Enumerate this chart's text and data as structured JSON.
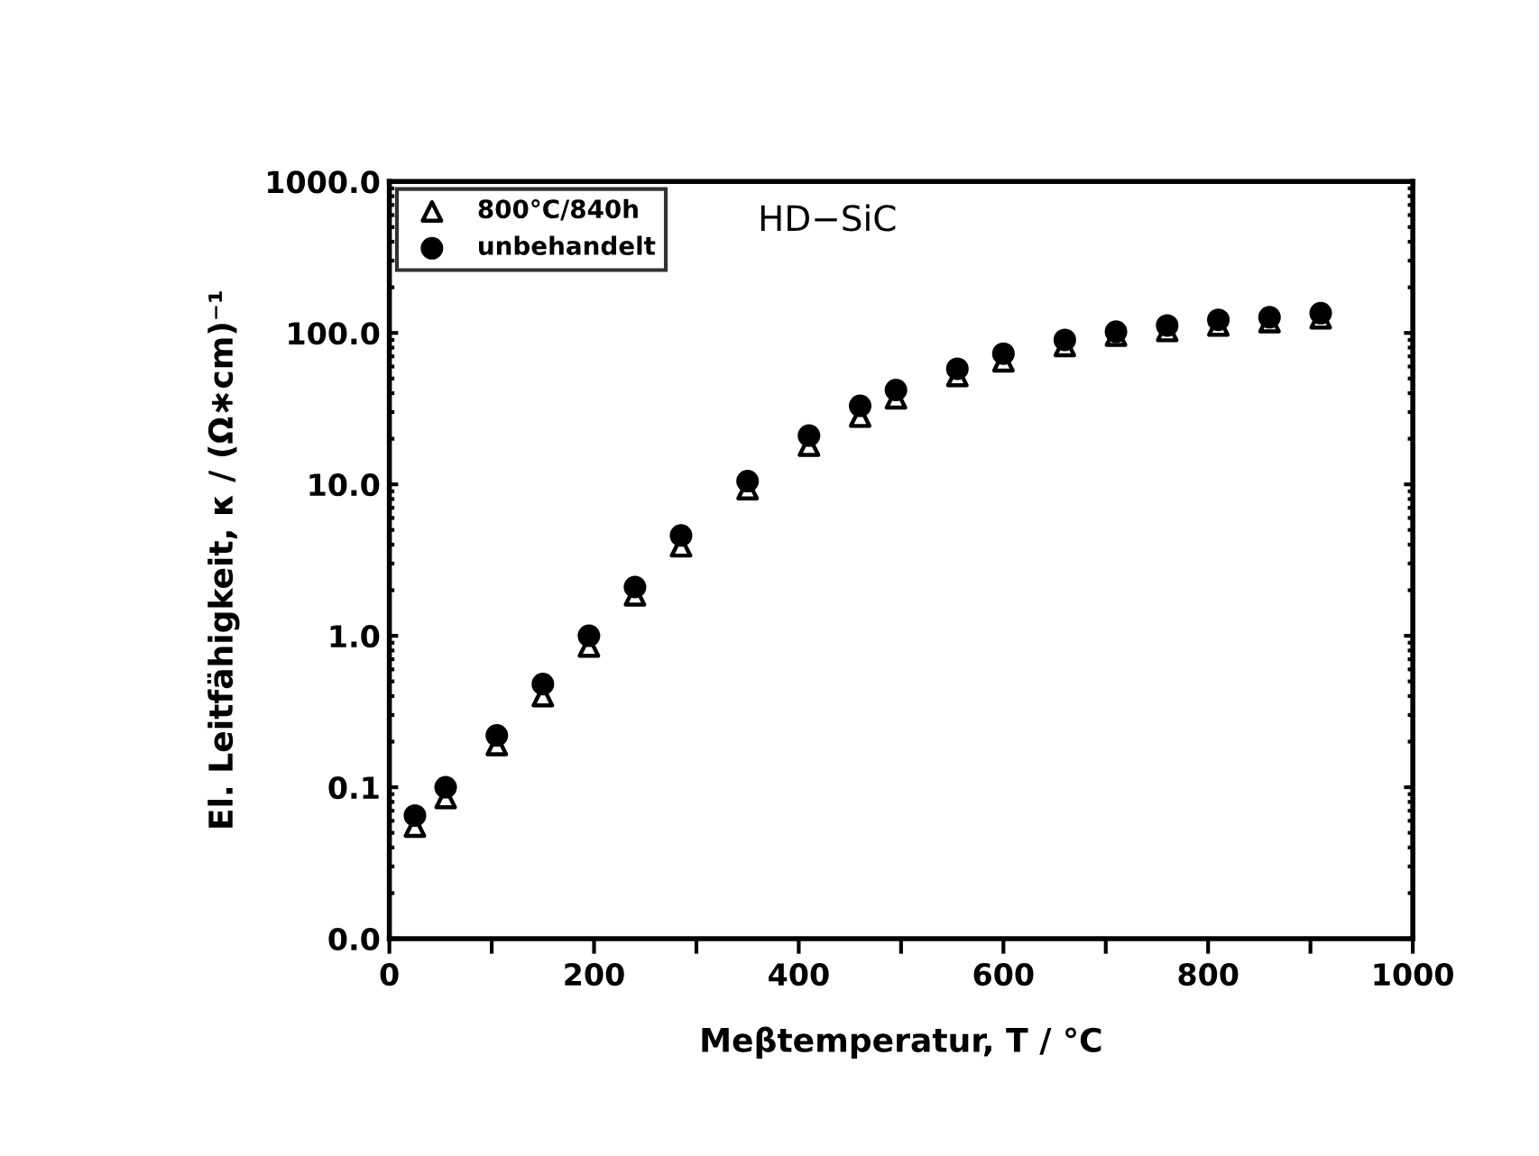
{
  "chart_data": {
    "type": "scatter",
    "title": "HD−SiC",
    "xlabel": "Meβtemperatur, T / °C",
    "ylabel": "El. Leitfähigkeit, κ / (Ω∗cm)⁻¹",
    "x": [
      25,
      55,
      105,
      150,
      195,
      240,
      285,
      350,
      410,
      460,
      495,
      555,
      600,
      660,
      710,
      760,
      810,
      860,
      910
    ],
    "series": [
      {
        "name": "800°C/840h",
        "color": "#000000",
        "marker": "triangle",
        "values": [
          0.055,
          0.085,
          0.19,
          0.4,
          0.85,
          1.85,
          3.9,
          9.3,
          18,
          28,
          37,
          52,
          65,
          82,
          96,
          103,
          112,
          118,
          125
        ]
      },
      {
        "name": "unbehandelt",
        "color": "#000000",
        "marker": "circle",
        "values": [
          0.065,
          0.1,
          0.22,
          0.48,
          1.0,
          2.1,
          4.6,
          10.5,
          21,
          33,
          42,
          58,
          73,
          90,
          102,
          112,
          122,
          127,
          135
        ]
      }
    ],
    "log": "y",
    "xlim": [
      0,
      1000
    ],
    "xticks": [
      0,
      {
        "value": 100,
        "label": null
      },
      200,
      {
        "value": 300,
        "label": null
      },
      400,
      {
        "value": 500,
        "label": null
      },
      600,
      {
        "value": 700,
        "label": null
      },
      800,
      {
        "value": 900,
        "label": null
      },
      1000
    ],
    "ylim": [
      0.01,
      1000
    ],
    "yticks": [
      {
        "value": 0.01,
        "label": "0.0"
      },
      {
        "value": 0.1,
        "label": "0.1"
      },
      {
        "value": 1,
        "label": "1.0"
      },
      {
        "value": 10,
        "label": "10.0"
      },
      {
        "value": 100,
        "label": "100.0"
      },
      {
        "value": 1000,
        "label": "1000.0"
      }
    ],
    "grid": false,
    "legend": "top left"
  }
}
